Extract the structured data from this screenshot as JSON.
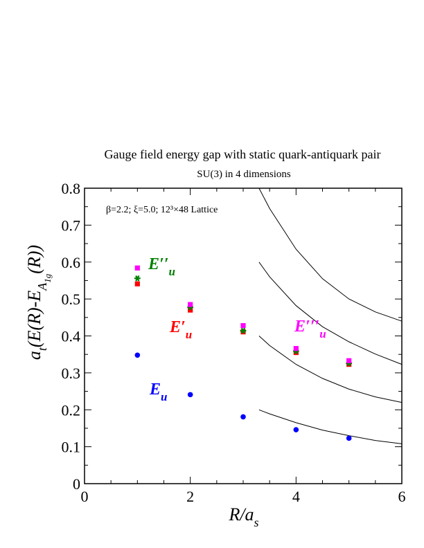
{
  "chart_data": {
    "type": "scatter",
    "title": "Gauge field energy gap with static quark-antiquark pair",
    "subtitle": "SU(3) in 4 dimensions",
    "annotation": "β=2.2;  ξ=5.0;  12³×48 Lattice",
    "xlabel": "R/a_s",
    "ylabel": "a_t(E(R)-E_A1g(R))",
    "xlim": [
      0,
      6
    ],
    "ylim": [
      0,
      0.8
    ],
    "x_ticks": [
      "0",
      "2",
      "4",
      "6"
    ],
    "y_ticks": [
      "0",
      "0.1",
      "0.2",
      "0.3",
      "0.4",
      "0.5",
      "0.6",
      "0.7",
      "0.8"
    ],
    "grid": false,
    "series": [
      {
        "name": "E_u",
        "color": "#0000ff",
        "marker": "circle",
        "x": [
          1,
          2,
          3,
          4,
          5
        ],
        "y": [
          0.348,
          0.241,
          0.181,
          0.146,
          0.123
        ]
      },
      {
        "name": "E_u'",
        "color": "#ff0000",
        "marker": "square",
        "x": [
          1,
          2,
          3,
          4,
          5
        ],
        "y": [
          0.541,
          0.47,
          0.411,
          0.355,
          0.323
        ]
      },
      {
        "name": "E_u''",
        "color": "#008000",
        "marker": "star",
        "x": [
          1,
          2,
          3,
          4,
          5
        ],
        "y": [
          0.556,
          0.478,
          0.414,
          0.359,
          0.326
        ]
      },
      {
        "name": "E_u'''",
        "color": "#ff00ff",
        "marker": "square",
        "x": [
          1,
          2,
          3,
          4,
          5
        ],
        "y": [
          0.584,
          0.485,
          0.428,
          0.366,
          0.333
        ]
      }
    ],
    "series_labels": [
      {
        "base": "E",
        "sub": "u",
        "prime": "",
        "color": "#0000ff"
      },
      {
        "base": "E",
        "sub": "u",
        "prime": "′",
        "color": "#ff0000"
      },
      {
        "base": "E",
        "sub": "u",
        "prime": "′′",
        "color": "#008000"
      },
      {
        "base": "E",
        "sub": "u",
        "prime": "′′′",
        "color": "#ff00ff"
      }
    ],
    "curves": [
      {
        "x": [
          3.3,
          3.5,
          4.0,
          4.5,
          5.0,
          5.5,
          6.0
        ],
        "y": [
          0.2,
          0.189,
          0.165,
          0.145,
          0.13,
          0.117,
          0.108
        ]
      },
      {
        "x": [
          3.3,
          3.5,
          4.0,
          4.5,
          5.0,
          5.5,
          6.0
        ],
        "y": [
          0.4,
          0.374,
          0.323,
          0.285,
          0.256,
          0.235,
          0.22
        ]
      },
      {
        "x": [
          3.3,
          3.5,
          4.0,
          4.5,
          5.0,
          5.5,
          6.0
        ],
        "y": [
          0.6,
          0.56,
          0.482,
          0.425,
          0.384,
          0.351,
          0.323
        ]
      },
      {
        "x": [
          3.3,
          3.5,
          4.0,
          4.5,
          5.0,
          5.5,
          6.0
        ],
        "y": [
          0.8,
          0.745,
          0.635,
          0.555,
          0.5,
          0.465,
          0.44
        ]
      }
    ]
  }
}
